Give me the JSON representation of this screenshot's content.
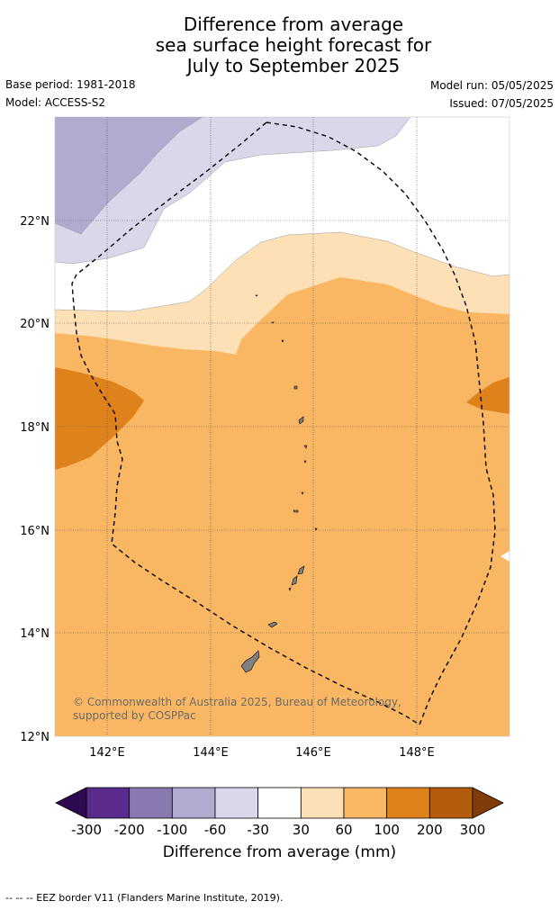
{
  "title": {
    "line1": "Difference from average",
    "line2": "sea surface height forecast for",
    "line3": "July to September 2025"
  },
  "meta": {
    "base_period": "Base period: 1981-2018",
    "model": "Model: ACCESS-S2",
    "model_run": "Model run: 05/05/2025",
    "issued": "Issued: 07/05/2025"
  },
  "map": {
    "lat_labels": [
      "22°N",
      "20°N",
      "18°N",
      "16°N",
      "14°N",
      "12°N"
    ],
    "lon_labels": [
      "142°E",
      "144°E",
      "146°E",
      "148°E"
    ],
    "copyright": "© Commonwealth of Australia 2025, Bureau of Meteorology, supported by COSPPac"
  },
  "colorbar": {
    "tick_labels": [
      "-300",
      "-200",
      "-100",
      "-60",
      "-30",
      "30",
      "60",
      "100",
      "200",
      "300"
    ],
    "colors": {
      "below_min": "#2d0a4f",
      "bins": [
        "#5a2a8c",
        "#8a78b0",
        "#b1abd0",
        "#d9d8ea",
        "#ffffff",
        "#fde0b6",
        "#f9b763",
        "#e0821c",
        "#b35c0c"
      ],
      "above_max": "#7f3b08"
    },
    "title": "Difference from average (mm)"
  },
  "footnote": "--  --  -- EEZ border V11 (Flanders Marine Institute, 2019)."
}
